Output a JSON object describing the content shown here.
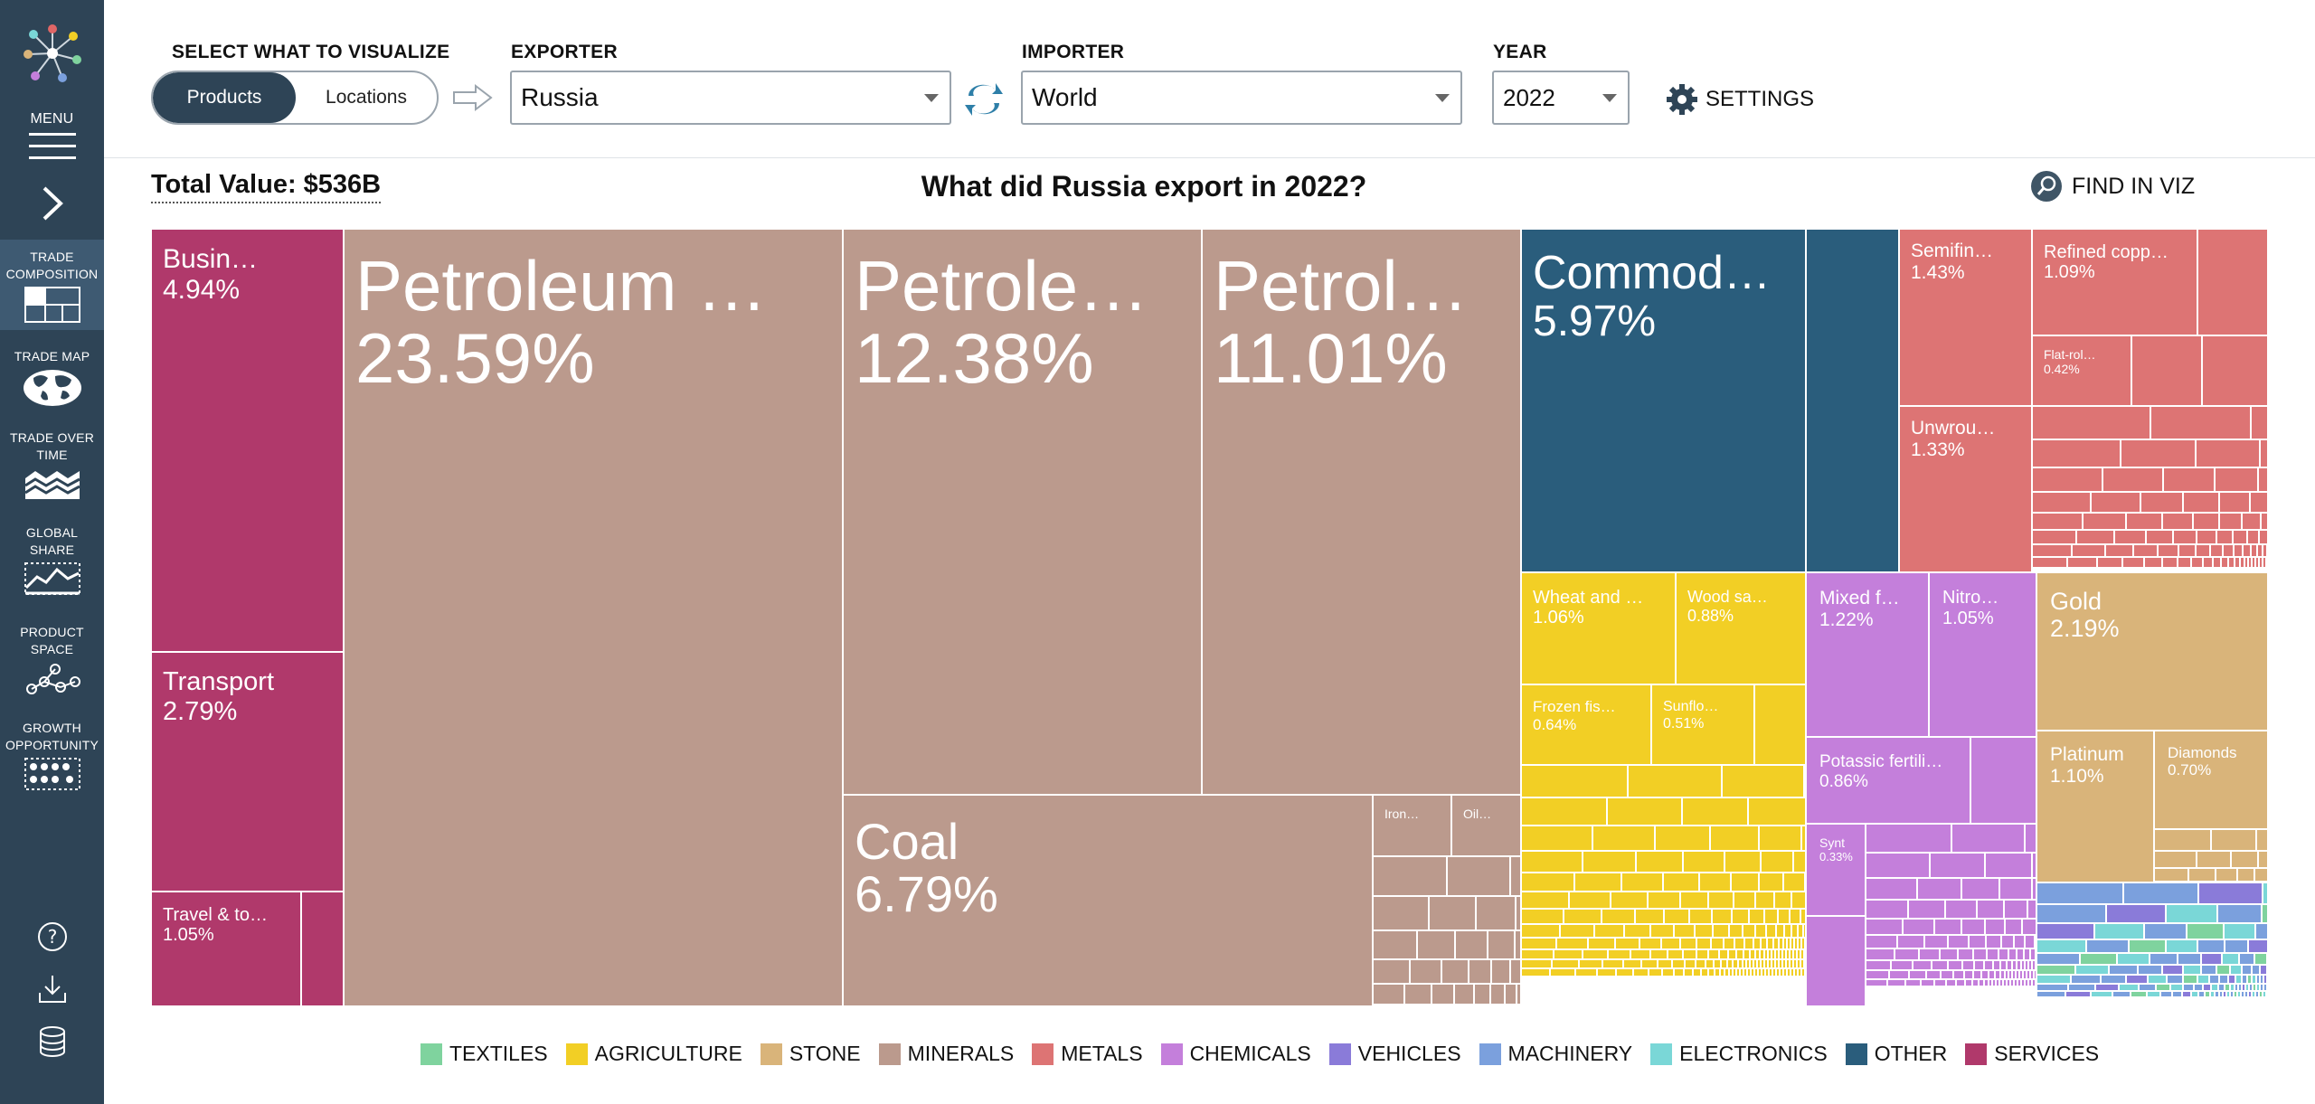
{
  "sidebar": {
    "menu_label": "MENU",
    "items": [
      {
        "label_1": "TRADE",
        "label_2": "COMPOSITION"
      },
      {
        "label_1": "TRADE MAP",
        "label_2": ""
      },
      {
        "label_1": "TRADE OVER",
        "label_2": "TIME"
      },
      {
        "label_1": "GLOBAL",
        "label_2": "SHARE"
      },
      {
        "label_1": "PRODUCT",
        "label_2": "SPACE"
      },
      {
        "label_1": "GROWTH",
        "label_2": "OPPORTUNITY"
      }
    ]
  },
  "header": {
    "visualize_label": "SELECT WHAT TO VISUALIZE",
    "toggle_products": "Products",
    "toggle_locations": "Locations",
    "exporter_label": "EXPORTER",
    "exporter_value": "Russia",
    "importer_label": "IMPORTER",
    "importer_value": "World",
    "year_label": "YEAR",
    "year_value": "2022",
    "settings_label": "SETTINGS"
  },
  "summary": {
    "total_value": "Total Value: $536B",
    "title": "What did Russia export in 2022?",
    "find_label": "FIND IN VIZ"
  },
  "colors": {
    "textiles": "#7fd39e",
    "agriculture": "#f2cf25",
    "stone": "#d9b47a",
    "minerals": "#bb9a8d",
    "metals": "#dd7474",
    "chemicals": "#c47fdb",
    "vehicles": "#8a7bd9",
    "machinery": "#7ba0dd",
    "electronics": "#7ad7d7",
    "other": "#2a5d7c",
    "services": "#b0396b"
  },
  "treemap": {
    "cells": [
      {
        "label": "Busin…",
        "value": "4.94%",
        "sector": "services"
      },
      {
        "label": "Transport",
        "value": "2.79%",
        "sector": "services"
      },
      {
        "label": "Travel & to…",
        "value": "1.05%",
        "sector": "services"
      },
      {
        "label": "Petroleum …",
        "value": "23.59%",
        "sector": "minerals"
      },
      {
        "label": "Petrole…",
        "value": "12.38%",
        "sector": "minerals"
      },
      {
        "label": "Petrol…",
        "value": "11.01%",
        "sector": "minerals"
      },
      {
        "label": "Coal",
        "value": "6.79%",
        "sector": "minerals"
      },
      {
        "label": "Iron…",
        "value": "",
        "sector": "minerals"
      },
      {
        "label": "Oil…",
        "value": "",
        "sector": "minerals"
      },
      {
        "label": "Commod…",
        "value": "5.97%",
        "sector": "other"
      },
      {
        "label": "Semifin…",
        "value": "1.43%",
        "sector": "metals"
      },
      {
        "label": "Refined copp…",
        "value": "1.09%",
        "sector": "metals"
      },
      {
        "label": "Flat-rol…",
        "value": "0.42%",
        "sector": "metals"
      },
      {
        "label": "Unwrou…",
        "value": "1.33%",
        "sector": "metals"
      },
      {
        "label": "Wheat and …",
        "value": "1.06%",
        "sector": "agriculture"
      },
      {
        "label": "Wood sa…",
        "value": "0.88%",
        "sector": "agriculture"
      },
      {
        "label": "Frozen fis…",
        "value": "0.64%",
        "sector": "agriculture"
      },
      {
        "label": "Sunflo…",
        "value": "0.51%",
        "sector": "agriculture"
      },
      {
        "label": "Mixed f…",
        "value": "1.22%",
        "sector": "chemicals"
      },
      {
        "label": "Nitro…",
        "value": "1.05%",
        "sector": "chemicals"
      },
      {
        "label": "Potassic fertili…",
        "value": "0.86%",
        "sector": "chemicals"
      },
      {
        "label": "Synt",
        "value": "0.33%",
        "sector": "chemicals"
      },
      {
        "label": "Gold",
        "value": "2.19%",
        "sector": "stone"
      },
      {
        "label": "Platinum",
        "value": "1.10%",
        "sector": "stone"
      },
      {
        "label": "Diamonds",
        "value": "0.70%",
        "sector": "stone"
      }
    ]
  },
  "legend": [
    {
      "label": "TEXTILES",
      "color": "#7fd39e"
    },
    {
      "label": "AGRICULTURE",
      "color": "#f2cf25"
    },
    {
      "label": "STONE",
      "color": "#d9b47a"
    },
    {
      "label": "MINERALS",
      "color": "#bb9a8d"
    },
    {
      "label": "METALS",
      "color": "#dd7474"
    },
    {
      "label": "CHEMICALS",
      "color": "#c47fdb"
    },
    {
      "label": "VEHICLES",
      "color": "#8a7bd9"
    },
    {
      "label": "MACHINERY",
      "color": "#7ba0dd"
    },
    {
      "label": "ELECTRONICS",
      "color": "#7ad7d7"
    },
    {
      "label": "OTHER",
      "color": "#2a5d7c"
    },
    {
      "label": "SERVICES",
      "color": "#b0396b"
    }
  ]
}
